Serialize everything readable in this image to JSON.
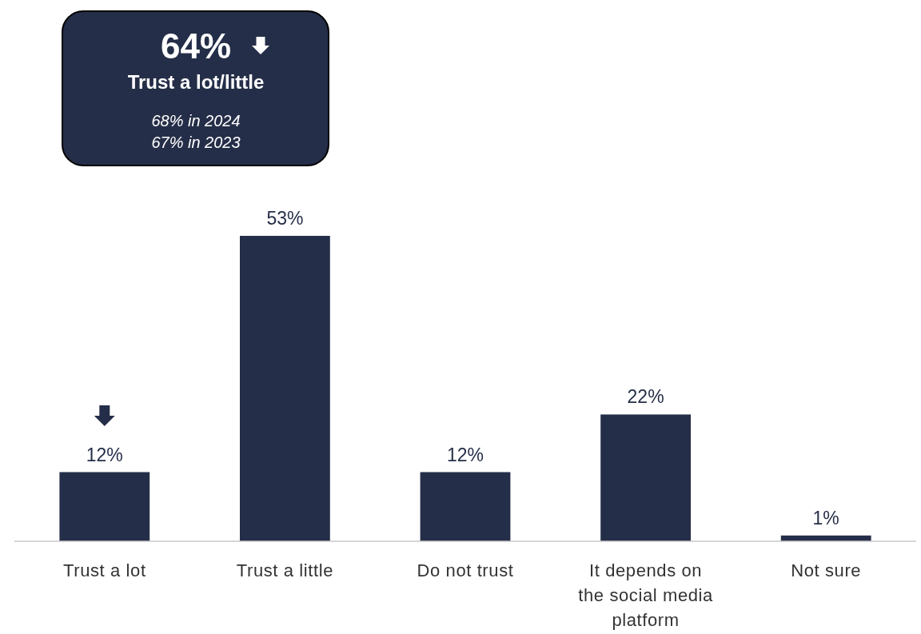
{
  "chart_data": {
    "type": "bar",
    "categories": [
      "Trust a lot",
      "Trust a little",
      "Do not trust",
      "It depends on the social media platform",
      "Not sure"
    ],
    "values": [
      12,
      53,
      12,
      22,
      1
    ],
    "value_labels": [
      "12%",
      "53%",
      "12%",
      "22%",
      "1%"
    ],
    "color": "#252e48",
    "annotations": [
      "64%",
      "Trust a lot/little",
      "68% in 2024",
      "67% in 2023"
    ]
  }
}
